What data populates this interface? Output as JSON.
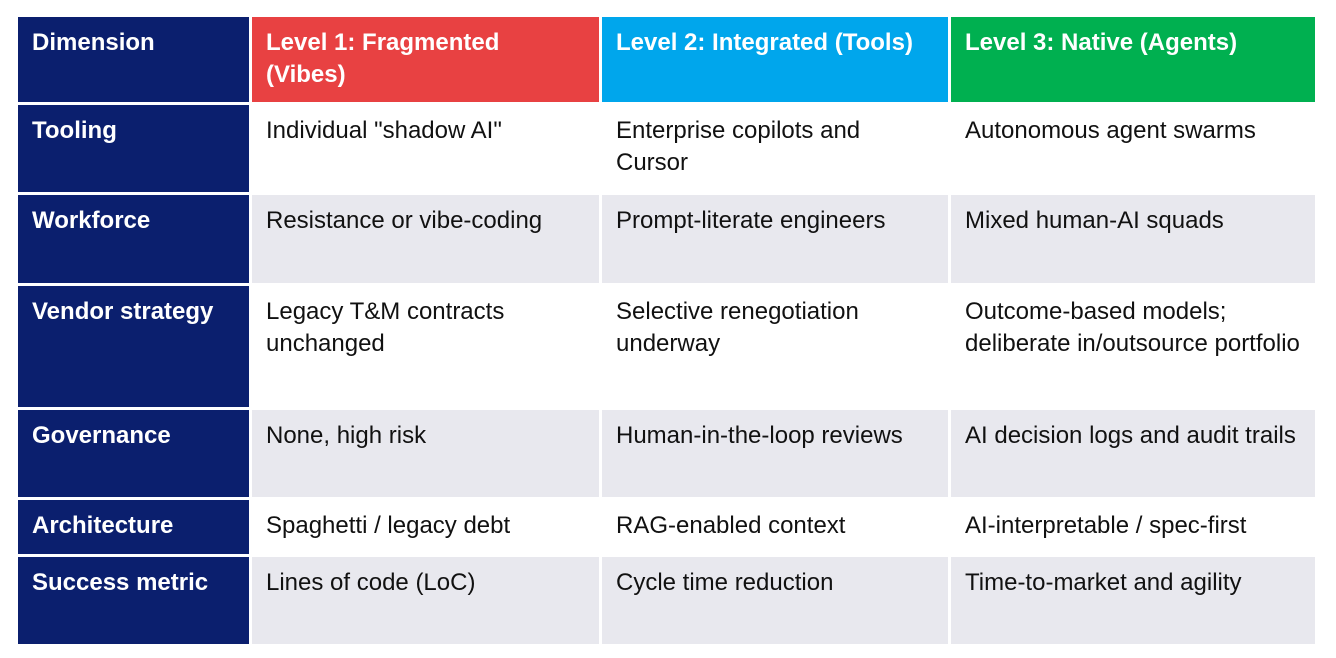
{
  "table": {
    "header": [
      "Dimension",
      "Level 1: Fragmented (Vibes)",
      "Level 2: Integrated (Tools)",
      "Level 3: Native (Agents)"
    ],
    "rows": [
      [
        "Tooling",
        "Individual \"shadow AI\"",
        "Enterprise copilots and Cursor",
        "Autonomous agent swarms"
      ],
      [
        "Workforce",
        "Resistance or vibe-coding",
        "Prompt-literate engineers",
        "Mixed human-AI squads"
      ],
      [
        "Vendor strategy",
        "Legacy T&M contracts unchanged",
        "Selective renegotiation underway",
        "Outcome-based models; deliberate in/outsource portfolio"
      ],
      [
        "Governance",
        "None, high risk",
        "Human-in-the-loop reviews",
        "AI decision logs and audit trails"
      ],
      [
        "Architecture",
        "Spaghetti / legacy debt",
        "RAG-enabled context",
        "AI-interpretable / spec-first"
      ],
      [
        "Success metric",
        "Lines of code (LoC)",
        "Cycle time reduction",
        "Time-to-market and agility"
      ]
    ]
  }
}
